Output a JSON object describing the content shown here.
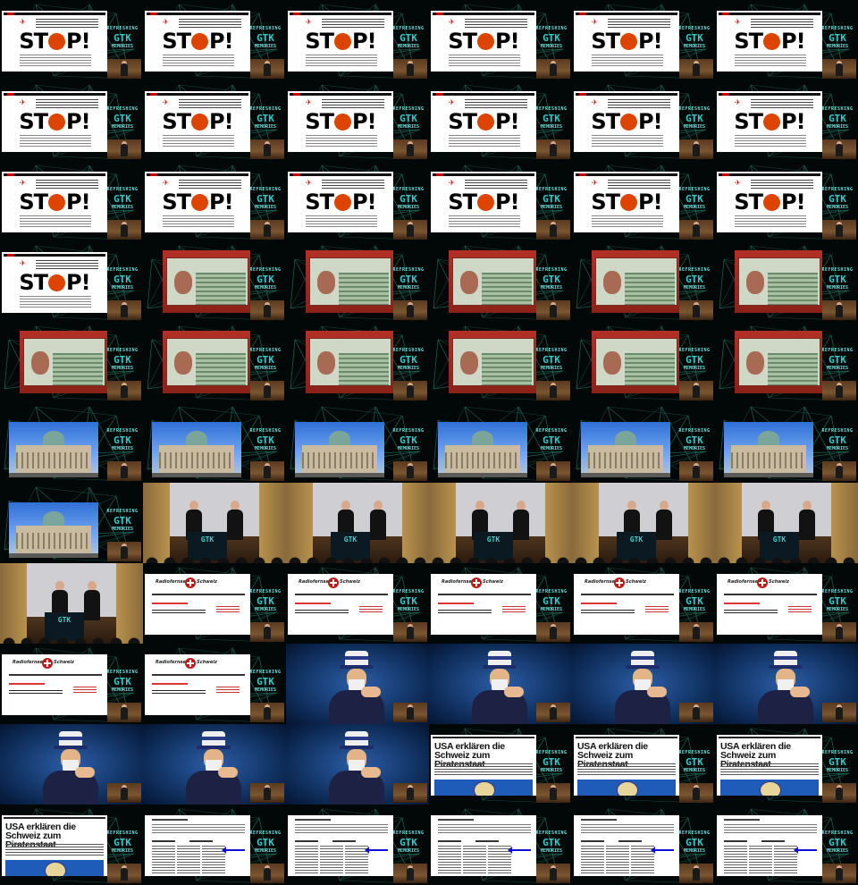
{
  "grid": {
    "columns": 6,
    "rows": 11
  },
  "logo": {
    "line1": "REFRESHING",
    "line2": "GTK",
    "line3": "MEMORIES"
  },
  "slides": {
    "stop": {
      "word_left": "ST",
      "word_right": "P!"
    },
    "usa": {
      "headline": "USA erklären die Schweiz zum Piratenstaat"
    },
    "news": {
      "masthead": "Radiofernsehen Schweiz"
    },
    "stage": {
      "podium": "GTK"
    }
  },
  "frames": [
    "stop",
    "stop",
    "stop",
    "stop",
    "stop",
    "stop",
    "stop",
    "stop",
    "stop",
    "stop",
    "stop",
    "stop",
    "stop",
    "stop",
    "stop",
    "stop",
    "stop",
    "stop",
    "stop",
    "photo",
    "photo",
    "photo",
    "photo",
    "photo",
    "photo",
    "photo",
    "photo",
    "photo",
    "photo",
    "photo",
    "building",
    "building",
    "building",
    "building",
    "building",
    "building",
    "building",
    "stage",
    "stage",
    "stage",
    "stage",
    "stage",
    "stage",
    "news",
    "news",
    "news",
    "news",
    "news",
    "news",
    "news",
    "sam",
    "sam",
    "sam",
    "sam",
    "sam",
    "sam",
    "sam",
    "usa",
    "usa",
    "usa",
    "usa",
    "list",
    "list",
    "list",
    "list",
    "list"
  ],
  "colors": {
    "accent": "#4fd3d0",
    "background": "#020807",
    "stop_red": "#d40",
    "arrow_blue": "#1010dd"
  }
}
